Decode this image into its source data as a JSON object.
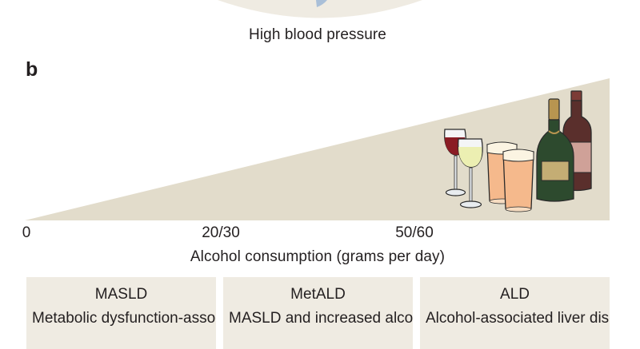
{
  "panel_a": {
    "caption": "High blood pressure"
  },
  "panel_b": {
    "label": "b",
    "axis": {
      "ticks": [
        "0",
        "20/30",
        "50/60"
      ],
      "title": "Alcohol consumption (grams per day)"
    },
    "icons": [
      "red-wine-glass-icon",
      "white-wine-glass-icon",
      "beer-pint-icon",
      "beer-pint-icon",
      "champagne-bottle-icon",
      "red-wine-bottle-icon"
    ],
    "categories": [
      {
        "title": "MASLD",
        "description": "Metabolic dysfunction-associated steatotic"
      },
      {
        "title": "MetALD",
        "description": "MASLD and increased alcohol intake"
      },
      {
        "title": "ALD",
        "description": "Alcohol-associated liver disease"
      }
    ]
  },
  "colors": {
    "wedge": "#e2dccb",
    "box": "#efebe2",
    "text": "#231f20",
    "bottle_green": "#2d4a2e",
    "bottle_brown": "#5a2f2c",
    "beer": "#f5b98c",
    "red_wine": "#8a1c24",
    "white_wine": "#ecefb2"
  }
}
